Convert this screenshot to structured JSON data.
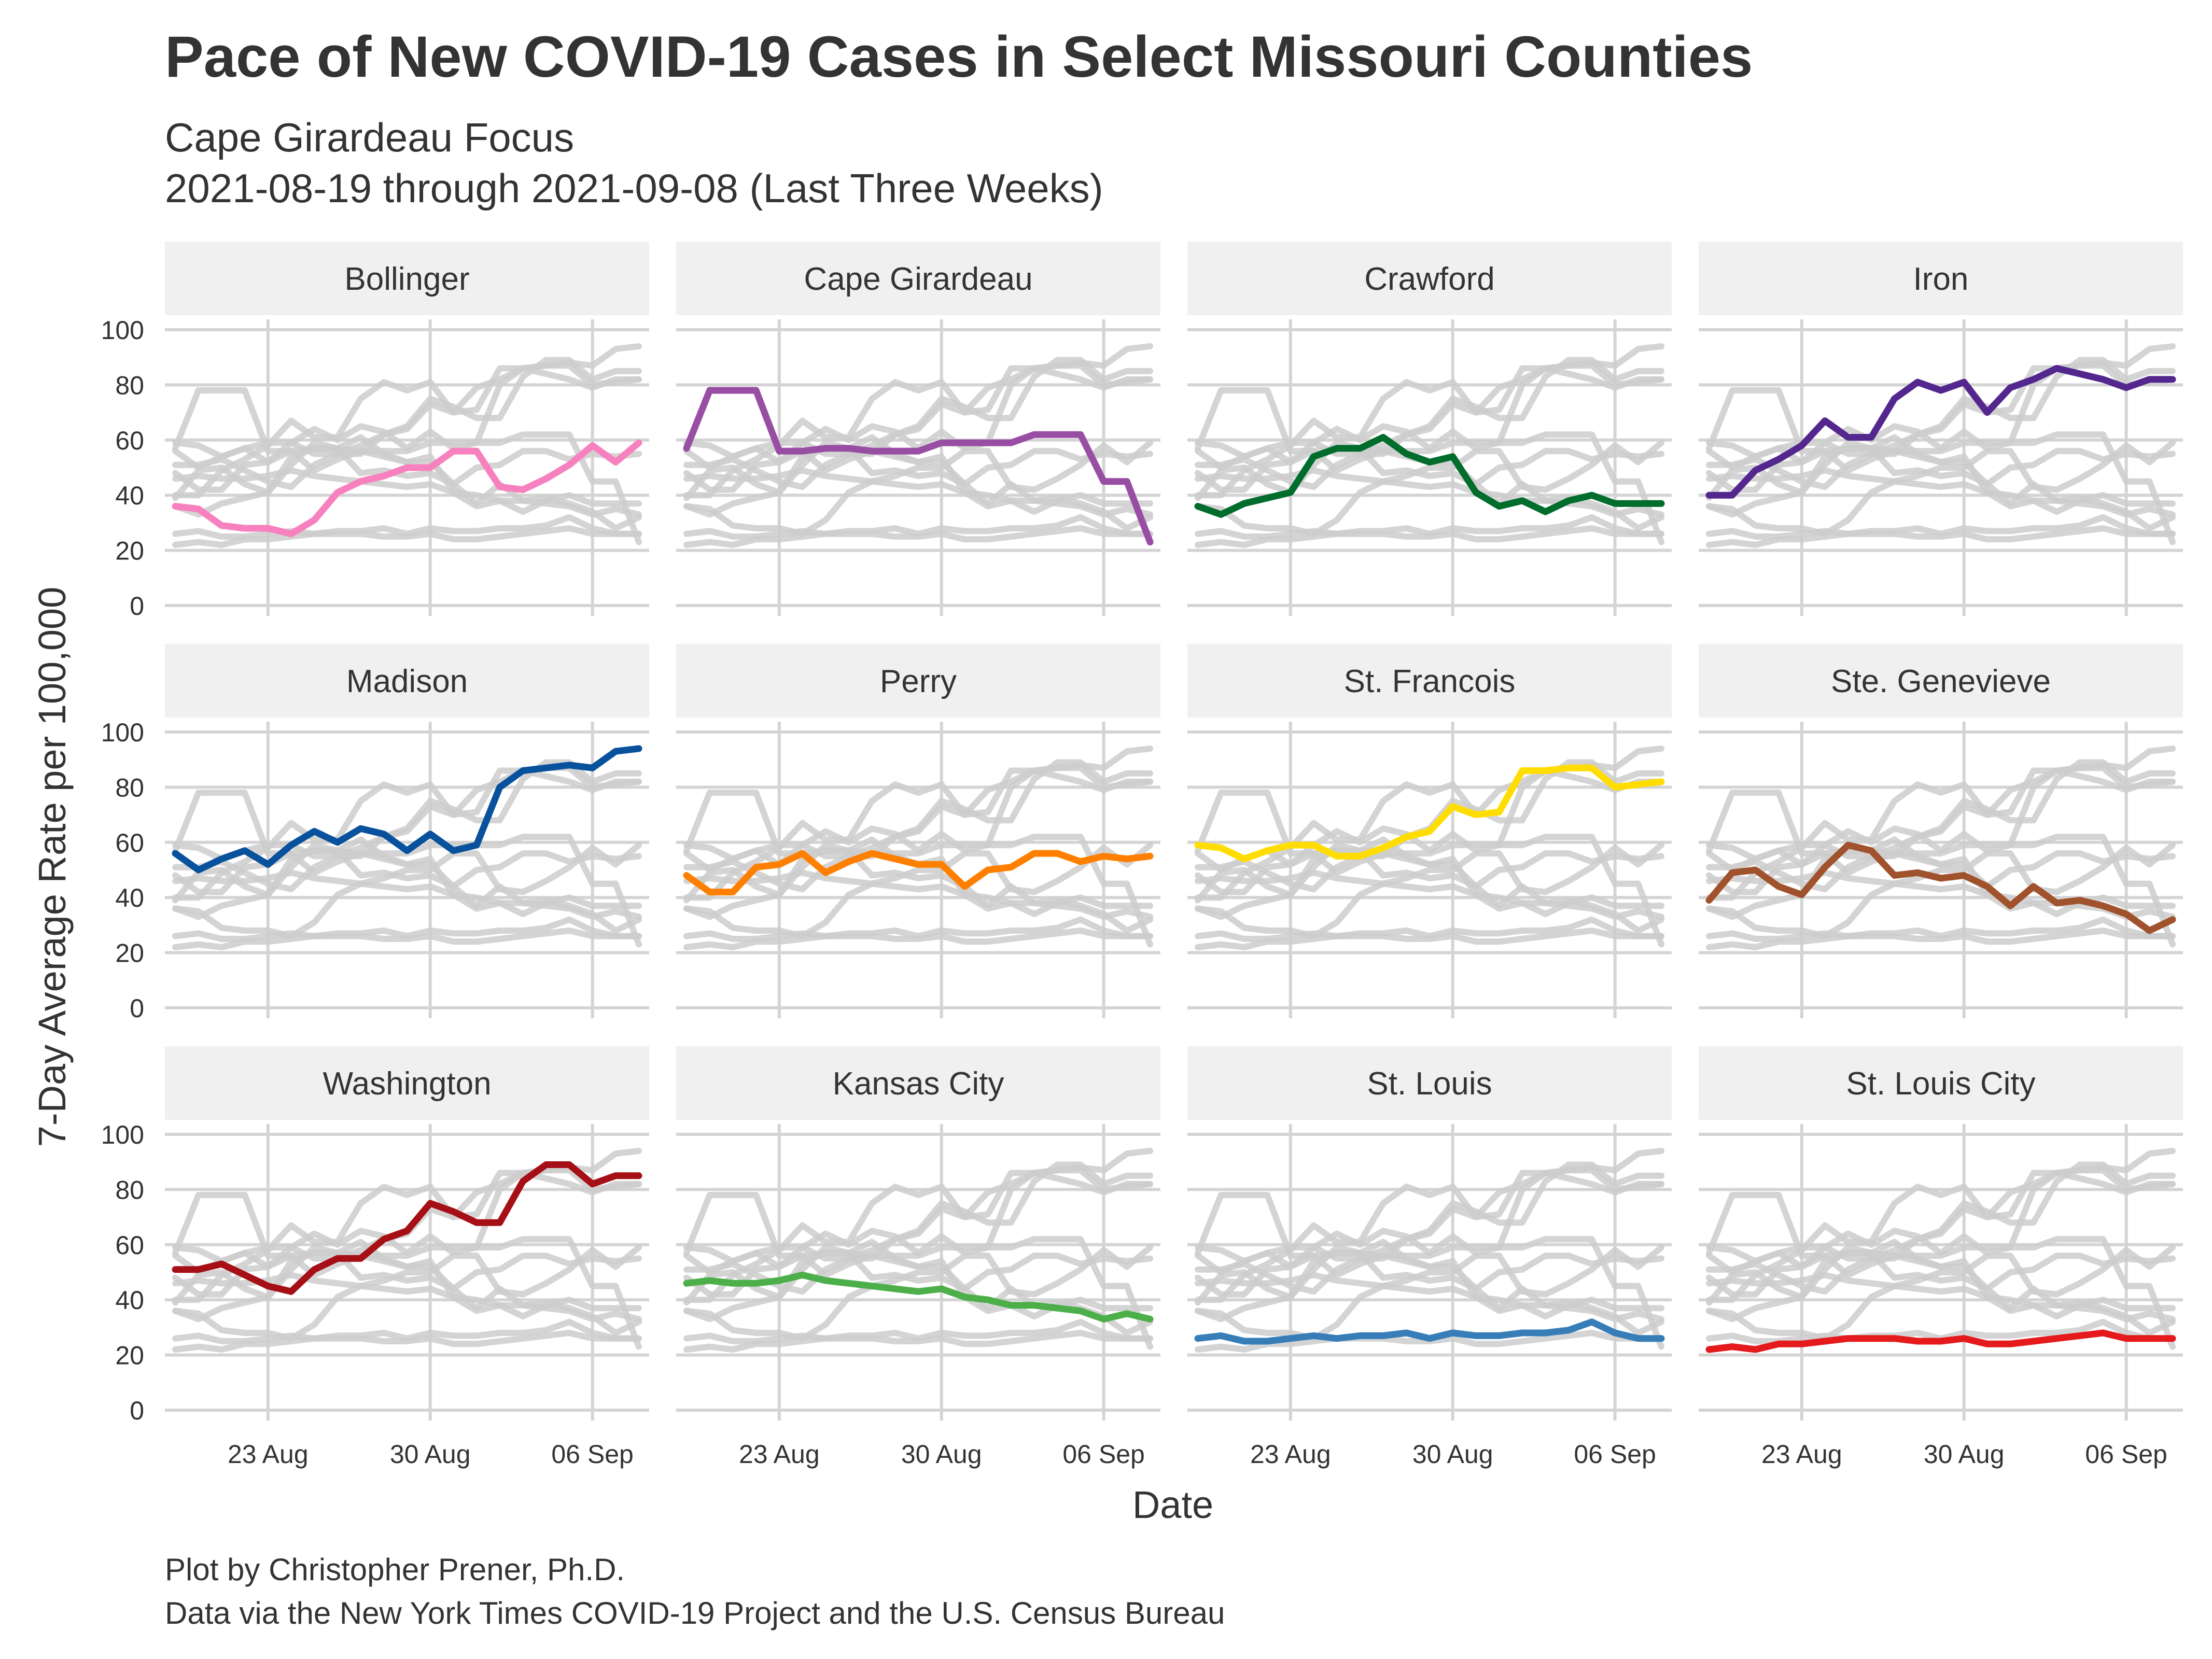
{
  "chart_data": {
    "type": "line",
    "title": "Pace of New COVID-19 Cases in Select Missouri Counties",
    "subtitle_line1": "Cape Girardeau Focus",
    "subtitle_line2": "2021-08-19 through 2021-09-08 (Last Three Weeks)",
    "xlabel": "Date",
    "ylabel": "7-Day Average Rate per 100,000",
    "caption_line1": "Plot by Christopher Prener, Ph.D.",
    "caption_line2": "Data via the New York Times COVID-19 Project and the U.S. Census Bureau",
    "ylim": [
      0,
      100
    ],
    "y_ticks": [
      0,
      20,
      40,
      60,
      80,
      100
    ],
    "x_ticks": [
      {
        "label": "23 Aug",
        "date": "2021-08-23"
      },
      {
        "label": "30 Aug",
        "date": "2021-08-30"
      },
      {
        "label": "06 Sep",
        "date": "2021-09-06"
      }
    ],
    "x": [
      "2021-08-19",
      "2021-08-20",
      "2021-08-21",
      "2021-08-22",
      "2021-08-23",
      "2021-08-24",
      "2021-08-25",
      "2021-08-26",
      "2021-08-27",
      "2021-08-28",
      "2021-08-29",
      "2021-08-30",
      "2021-08-31",
      "2021-09-01",
      "2021-09-02",
      "2021-09-03",
      "2021-09-04",
      "2021-09-05",
      "2021-09-06",
      "2021-09-07",
      "2021-09-08"
    ],
    "layout": "facet grid, 3 rows x 4 columns; each panel highlights one series and shows all others in gray",
    "background_color": "#cccccc",
    "series": [
      {
        "name": "Bollinger",
        "color": "#f781bf",
        "values": [
          36,
          35,
          29,
          28,
          28,
          26,
          31,
          41,
          45,
          47,
          50,
          50,
          56,
          56,
          43,
          42,
          46,
          51,
          58,
          52,
          59
        ]
      },
      {
        "name": "Cape Girardeau",
        "color": "#984ea3",
        "values": [
          57,
          78,
          78,
          78,
          56,
          56,
          57,
          57,
          56,
          56,
          56,
          59,
          59,
          59,
          59,
          62,
          62,
          62,
          45,
          45,
          23
        ]
      },
      {
        "name": "Crawford",
        "color": "#006d2c",
        "values": [
          36,
          33,
          37,
          39,
          41,
          54,
          57,
          57,
          61,
          55,
          52,
          54,
          41,
          36,
          38,
          34,
          38,
          40,
          37,
          37,
          37
        ]
      },
      {
        "name": "Iron",
        "color": "#54278f",
        "values": [
          40,
          40,
          49,
          53,
          58,
          67,
          61,
          61,
          75,
          81,
          78,
          81,
          70,
          79,
          82,
          86,
          84,
          82,
          79,
          82,
          82
        ]
      },
      {
        "name": "Madison",
        "color": "#08519c",
        "values": [
          56,
          50,
          54,
          57,
          52,
          59,
          64,
          60,
          65,
          63,
          57,
          63,
          57,
          59,
          80,
          86,
          87,
          88,
          87,
          93,
          94
        ]
      },
      {
        "name": "Perry",
        "color": "#ff7f00",
        "values": [
          48,
          42,
          42,
          51,
          52,
          56,
          49,
          53,
          56,
          54,
          52,
          52,
          44,
          50,
          51,
          56,
          56,
          53,
          55,
          54,
          55
        ]
      },
      {
        "name": "St. Francois",
        "color": "#ffdd00",
        "values": [
          59,
          58,
          54,
          57,
          59,
          59,
          55,
          55,
          58,
          62,
          64,
          73,
          70,
          71,
          86,
          86,
          87,
          87,
          80,
          81,
          82
        ]
      },
      {
        "name": "Ste. Genevieve",
        "color": "#a0522d",
        "values": [
          39,
          49,
          50,
          44,
          41,
          51,
          59,
          57,
          48,
          49,
          47,
          48,
          44,
          37,
          44,
          38,
          39,
          37,
          34,
          28,
          32
        ]
      },
      {
        "name": "Washington",
        "color": "#a50f15",
        "values": [
          51,
          51,
          53,
          49,
          45,
          43,
          51,
          55,
          55,
          62,
          65,
          75,
          72,
          68,
          68,
          83,
          89,
          89,
          82,
          85,
          85
        ]
      },
      {
        "name": "Kansas City",
        "color": "#4daf4a",
        "values": [
          46,
          47,
          46,
          46,
          47,
          49,
          47,
          46,
          45,
          44,
          43,
          44,
          41,
          40,
          38,
          38,
          37,
          36,
          33,
          35,
          33
        ]
      },
      {
        "name": "St. Louis",
        "color": "#377eb8",
        "values": [
          26,
          27,
          25,
          25,
          26,
          27,
          26,
          27,
          27,
          28,
          26,
          28,
          27,
          27,
          28,
          28,
          29,
          32,
          28,
          26,
          26
        ]
      },
      {
        "name": "St. Louis City",
        "color": "#e41a1c",
        "values": [
          22,
          23,
          22,
          24,
          24,
          25,
          26,
          26,
          26,
          25,
          25,
          26,
          24,
          24,
          25,
          26,
          27,
          28,
          26,
          26,
          26
        ]
      }
    ]
  }
}
